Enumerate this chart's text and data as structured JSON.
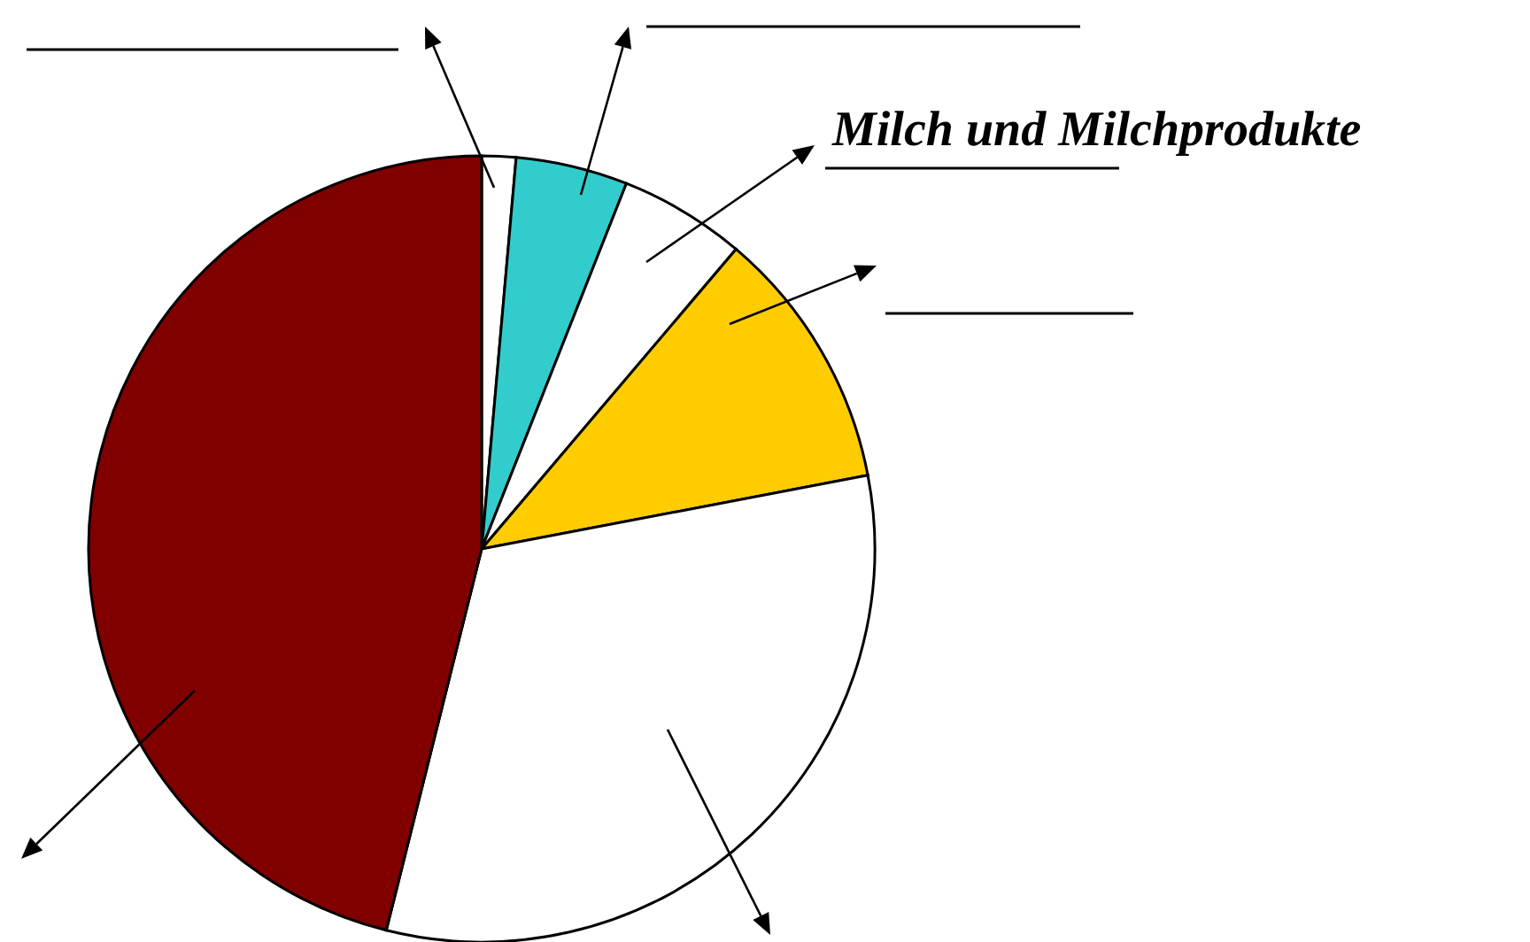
{
  "chart_data": {
    "type": "pie",
    "categories": [
      null,
      null,
      "Milch und Milchprodukte",
      null,
      null,
      null
    ],
    "values": [
      1.4,
      4.6,
      5.2,
      10.8,
      31.9,
      46.1
    ],
    "colors": [
      "#ffffff",
      "#33cccc",
      "#ffffff",
      "#ffcc00",
      "#ffffff",
      "#800000"
    ]
  }
}
